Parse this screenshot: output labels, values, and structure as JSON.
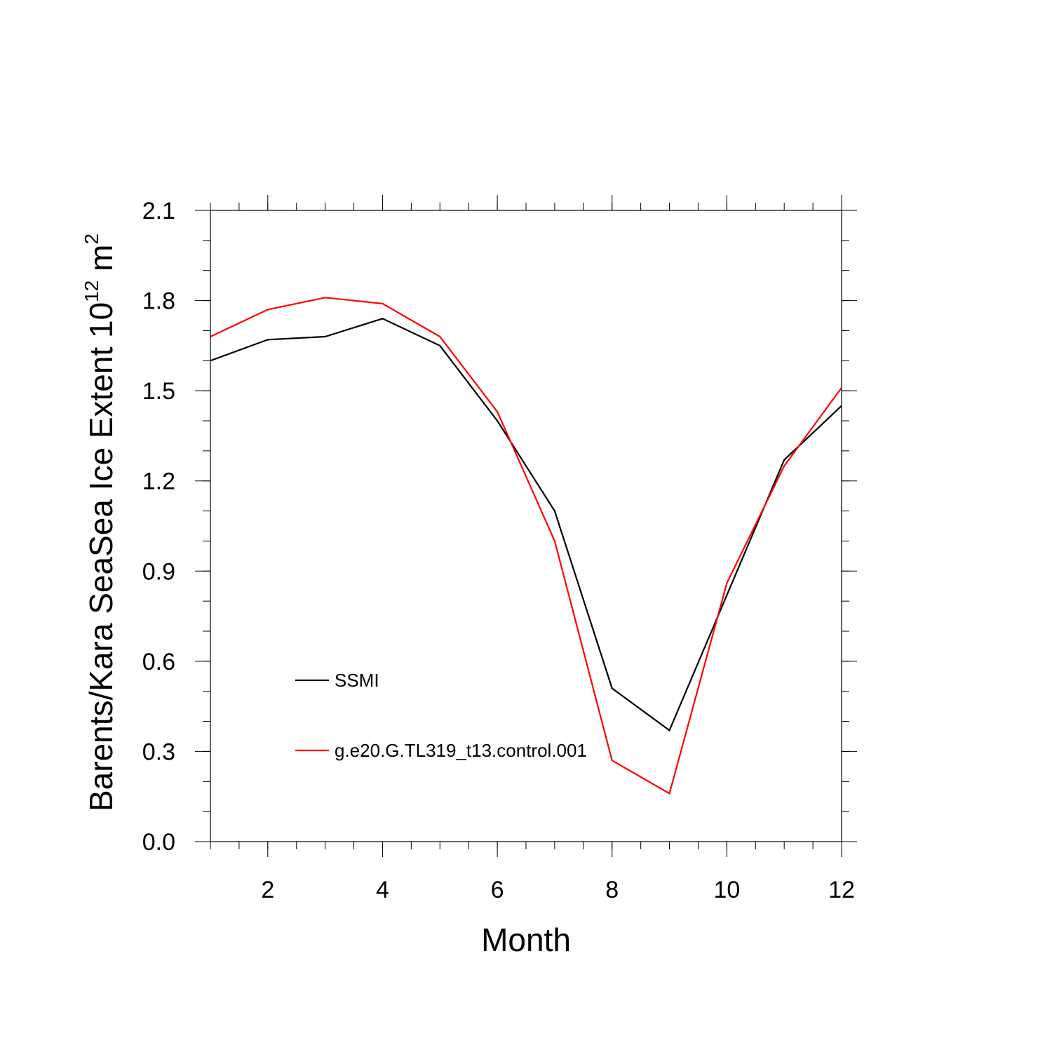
{
  "chart_data": {
    "type": "line",
    "xlabel": "Month",
    "ylabel": {
      "prefix": "Barents/Kara SeaSea Ice Extent 10",
      "exponent": "12",
      "unit": " m",
      "unit_exponent": "2"
    },
    "xlim": [
      1,
      12
    ],
    "ylim": [
      0.0,
      2.1
    ],
    "x_ticks": [
      2,
      4,
      6,
      8,
      10,
      12
    ],
    "x_tick_labels": [
      "2",
      "4",
      "6",
      "8",
      "10",
      "12"
    ],
    "y_ticks": [
      0.0,
      0.3,
      0.6,
      0.9,
      1.2,
      1.5,
      1.8,
      2.1
    ],
    "y_tick_labels": [
      "0.0",
      "0.3",
      "0.6",
      "0.9",
      "1.2",
      "1.5",
      "1.8",
      "2.1"
    ],
    "x": [
      1,
      2,
      3,
      4,
      5,
      6,
      7,
      8,
      9,
      10,
      11,
      12
    ],
    "series": [
      {
        "name": "SSMI",
        "color": "#000000",
        "values": [
          1.6,
          1.67,
          1.68,
          1.74,
          1.65,
          1.4,
          1.1,
          0.51,
          0.37,
          0.82,
          1.27,
          1.45
        ]
      },
      {
        "name": "g.e20.G.TL319_t13.control.001",
        "color": "#ff0000",
        "values": [
          1.68,
          1.77,
          1.81,
          1.79,
          1.68,
          1.43,
          1.0,
          0.27,
          0.16,
          0.86,
          1.25,
          1.51
        ]
      }
    ],
    "legend_position": "lower-left inside",
    "grid": false
  }
}
